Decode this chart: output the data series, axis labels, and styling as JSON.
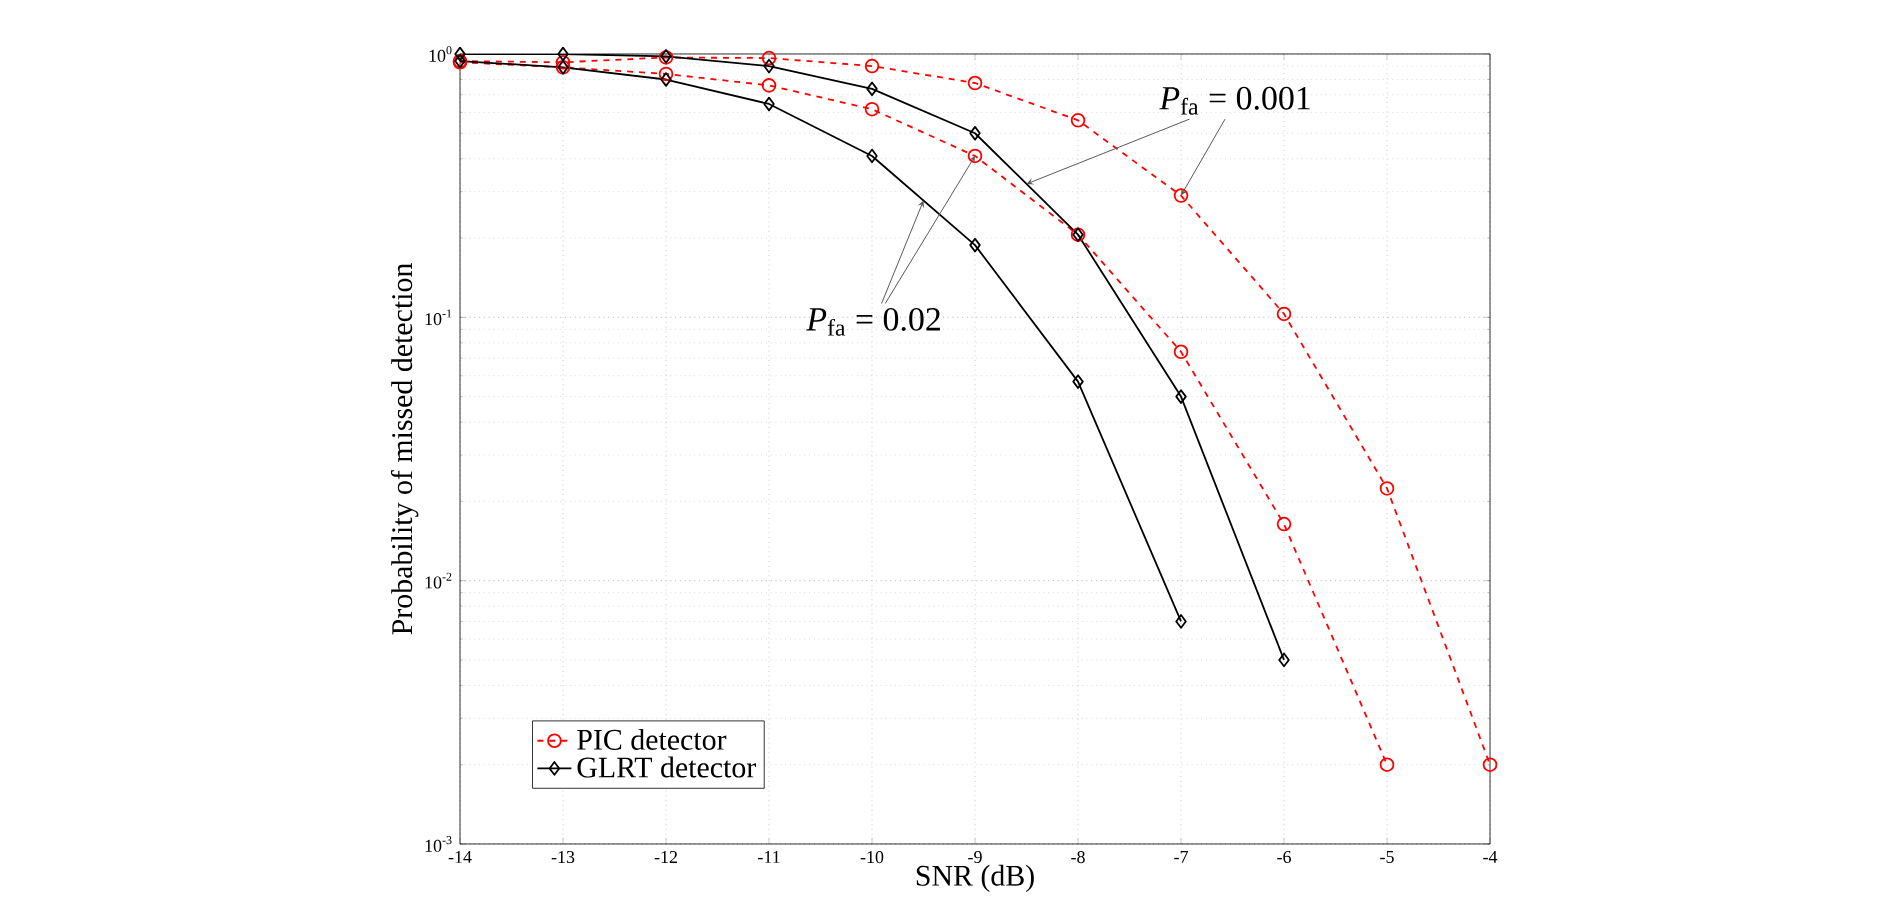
{
  "chart_data": {
    "type": "line",
    "xlabel": "SNR (dB)",
    "ylabel": "Probability of missed detection",
    "x": [
      -14,
      -13,
      -12,
      -11,
      -10,
      -9,
      -8,
      -7,
      -6,
      -5,
      -4
    ],
    "series": [
      {
        "name": "PIC detector",
        "color": "#ff0000",
        "line_style": "dashed",
        "marker": "circle",
        "values": [
          0.94,
          0.93,
          0.97,
          0.965,
          0.9,
          0.776,
          0.56,
          0.29,
          0.103,
          0.0224,
          0.002
        ]
      },
      {
        "color": "#ff0000",
        "line_style": "dashed",
        "marker": "circle",
        "values": [
          0.93,
          0.89,
          0.84,
          0.76,
          0.617,
          0.41,
          0.206,
          0.074,
          0.0164,
          0.002,
          null
        ]
      },
      {
        "name": "GLRT detector",
        "color": "#000000",
        "line_style": "solid",
        "marker": "diamond",
        "values": [
          1.0,
          1.0,
          0.98,
          0.9,
          0.737,
          0.5,
          0.206,
          0.05,
          0.005,
          null,
          null
        ]
      },
      {
        "color": "#000000",
        "line_style": "solid",
        "marker": "diamond",
        "values": [
          0.94,
          0.89,
          0.8,
          0.646,
          0.41,
          0.188,
          0.057,
          0.007,
          null,
          null,
          null
        ]
      }
    ],
    "annotations": [
      {
        "text": "*P*$_{fa}$ = 0.001",
        "x": -7,
        "y": 0.29
      },
      {
        "text": "*P*$_{fa}$ = 0.02",
        "x": -9,
        "y": 0.41
      }
    ],
    "xlim": [
      -14,
      -4
    ],
    "xticks": [
      -14,
      -13,
      -12,
      -11,
      -10,
      -9,
      -8,
      -7,
      -6,
      -5,
      -4
    ],
    "ylim": [
      0.001,
      1
    ],
    "yticks": [
      {
        "value": 0.001,
        "label": "10$^{-3}$"
      },
      {
        "value": 0.01,
        "label": "10$^{-2}$"
      },
      {
        "value": 0.1,
        "label": "10$^{-1}$"
      },
      {
        "value": 1,
        "label": "10$^{0}$"
      }
    ],
    "log": "y",
    "grid": true,
    "legend": "bottom left"
  }
}
